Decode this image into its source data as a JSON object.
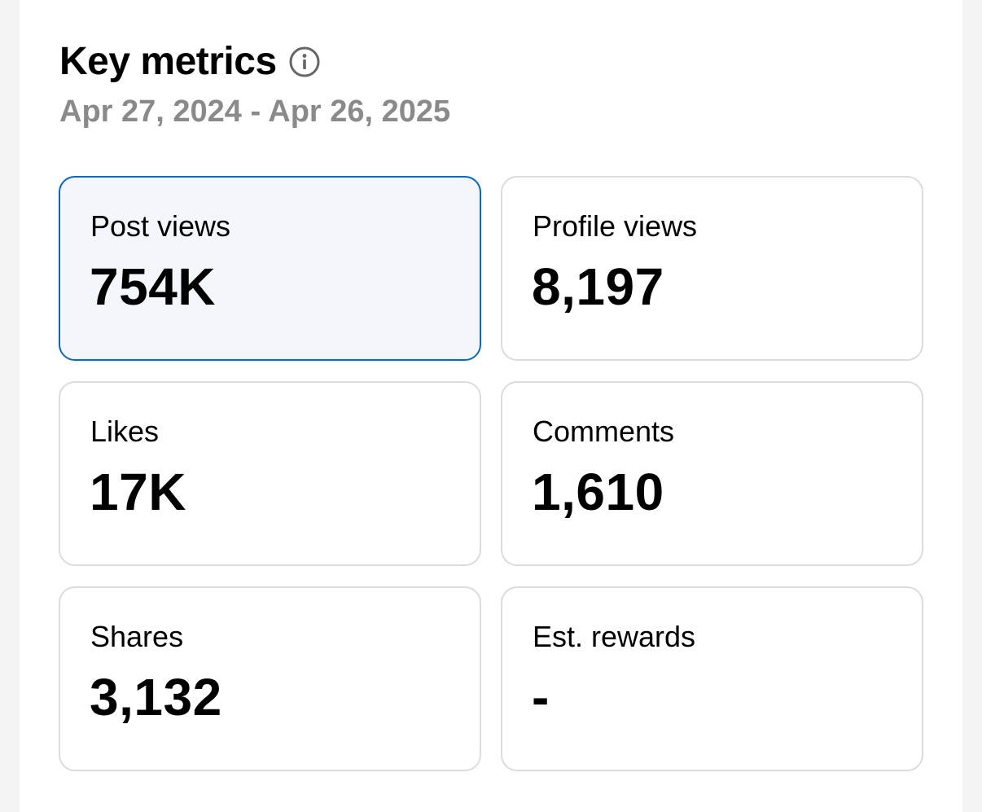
{
  "header": {
    "title": "Key metrics",
    "info_icon": "info-icon",
    "date_range": "Apr 27, 2024 - Apr 26, 2025"
  },
  "colors": {
    "selected_border": "#0a66c2",
    "selected_background": "#f3f7fb",
    "muted_text": "#8a8a8a"
  },
  "metrics": [
    {
      "label": "Post views",
      "value": "754K",
      "selected": true
    },
    {
      "label": "Profile views",
      "value": "8,197",
      "selected": false
    },
    {
      "label": "Likes",
      "value": "17K",
      "selected": false
    },
    {
      "label": "Comments",
      "value": "1,610",
      "selected": false
    },
    {
      "label": "Shares",
      "value": "3,132",
      "selected": false
    },
    {
      "label": "Est. rewards",
      "value": "-",
      "selected": false
    }
  ]
}
